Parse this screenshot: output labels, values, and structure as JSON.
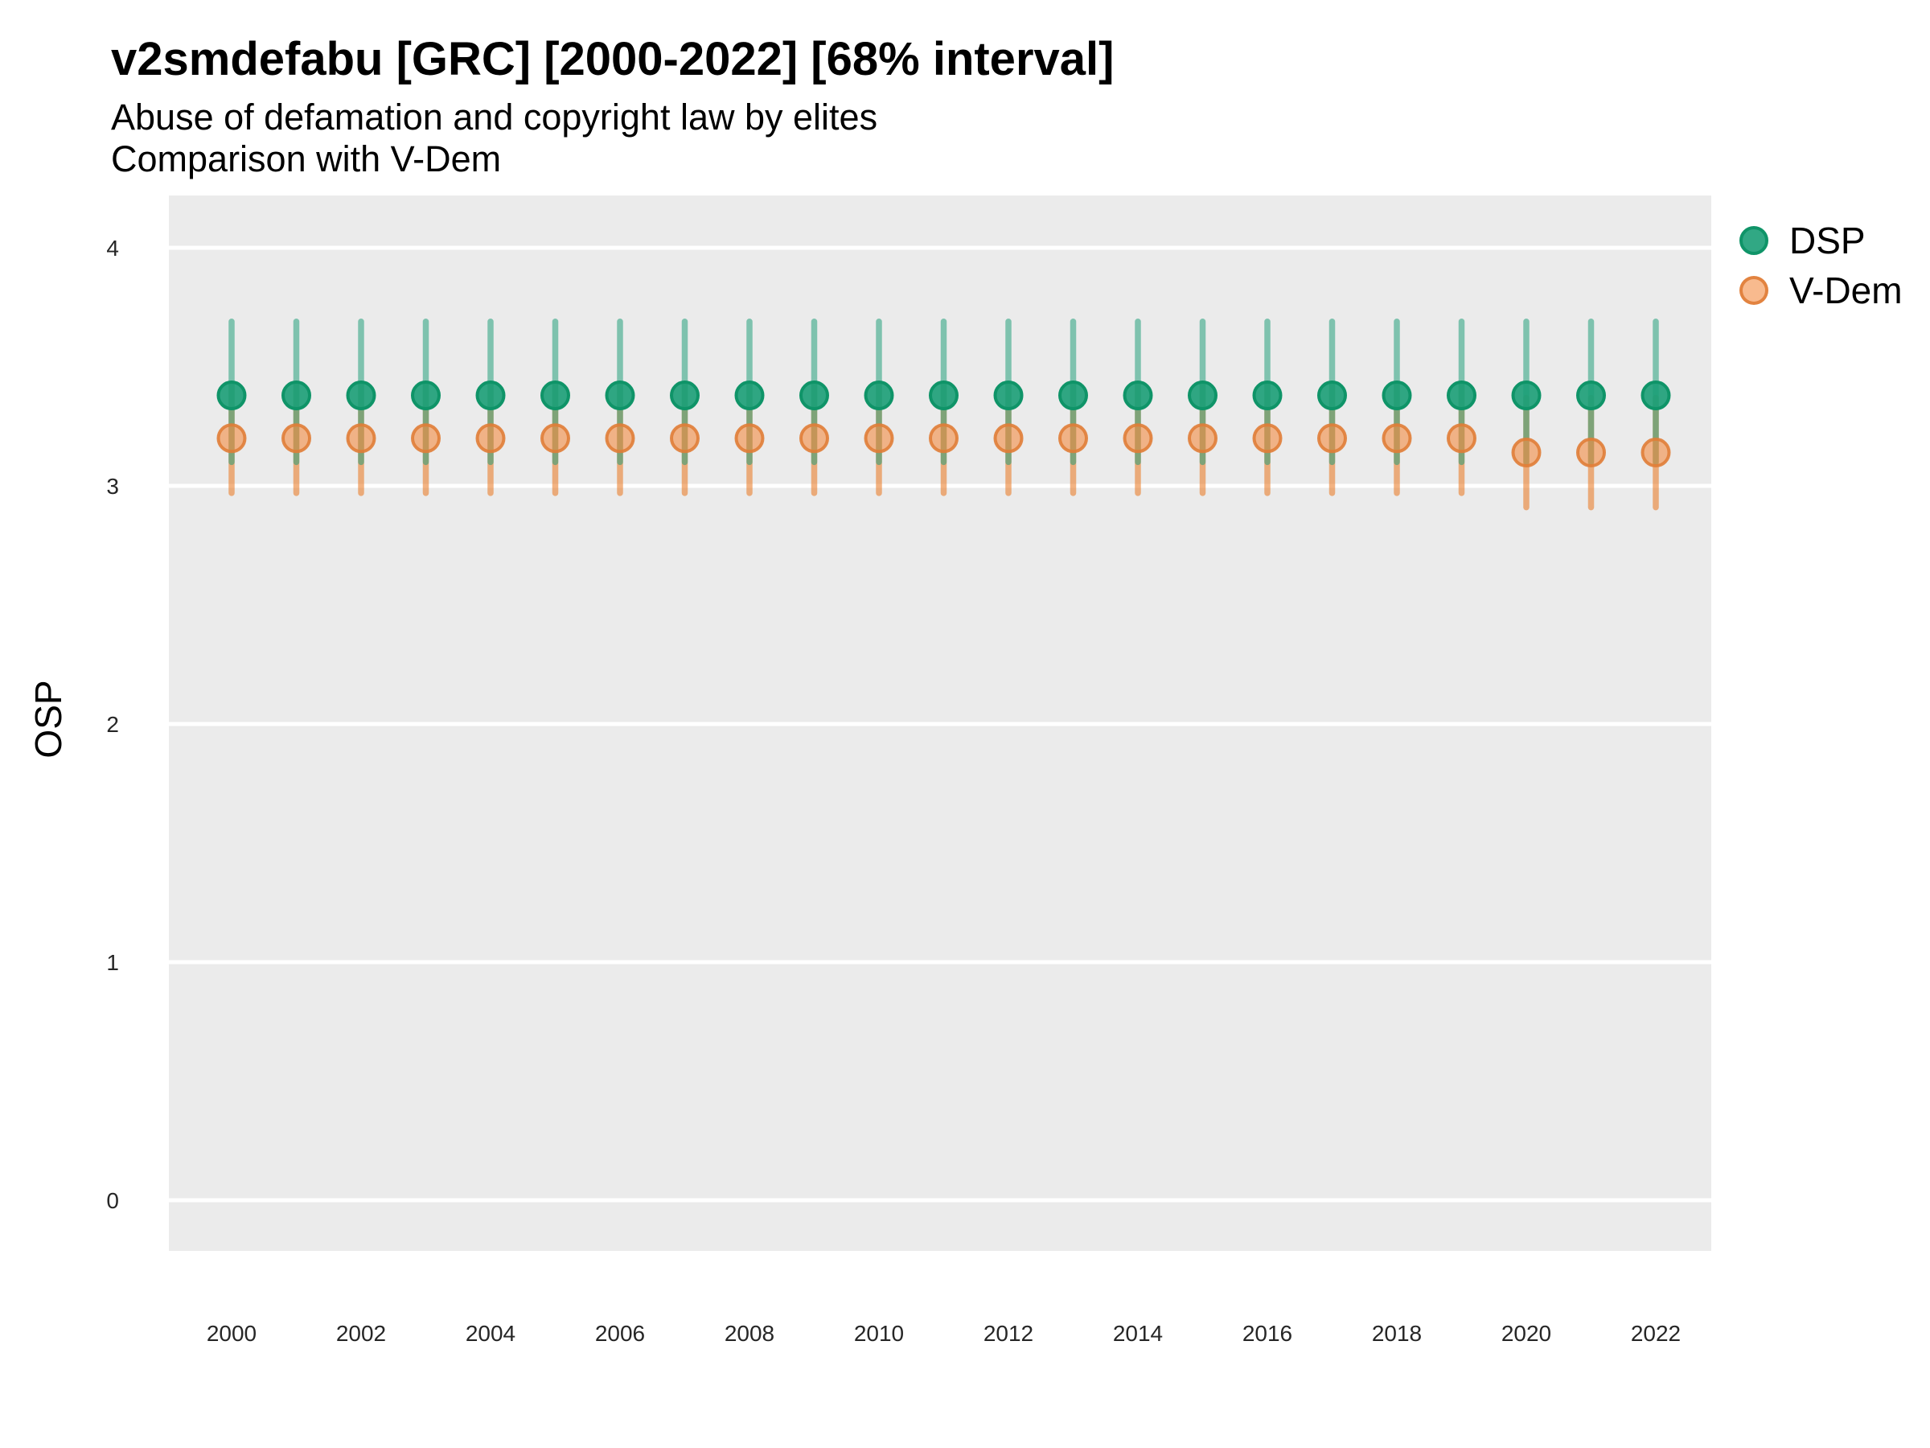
{
  "header": {
    "title": "v2smdefabu [GRC] [2000-2022] [68% interval]",
    "subtitle_line1": "Abuse of defamation and copyright law by elites",
    "subtitle_line2": "Comparison with V-Dem"
  },
  "legend": {
    "position": "right-top",
    "items": [
      {
        "label": "DSP"
      },
      {
        "label": "V-Dem"
      }
    ]
  },
  "colors": {
    "panel_background": "#EBEBEB",
    "gridline": "#FFFFFF",
    "dsp_green": "#1B9E77",
    "vdem_orange": "#E9751C"
  },
  "chart_data": {
    "type": "pointrange",
    "title": "v2smdefabu [GRC] [2000-2022] [68% interval]",
    "subtitle": [
      "Abuse of defamation and copyright law by elites",
      "Comparison with V-Dem"
    ],
    "interval": "68%",
    "xlabel": "",
    "ylabel": "OSP",
    "ylim": [
      0,
      4
    ],
    "grid": "horizontal-major-only",
    "legend_position": "right-top",
    "y_ticks": [
      0,
      1,
      2,
      3,
      4
    ],
    "x_ticks": [
      2000,
      2002,
      2004,
      2006,
      2008,
      2010,
      2012,
      2014,
      2016,
      2018,
      2020,
      2022
    ],
    "x": [
      2000,
      2001,
      2002,
      2003,
      2004,
      2005,
      2006,
      2007,
      2008,
      2009,
      2010,
      2011,
      2012,
      2013,
      2014,
      2015,
      2016,
      2017,
      2018,
      2019,
      2020,
      2021,
      2022
    ],
    "series": [
      {
        "name": "DSP",
        "point": [
          3.38,
          3.38,
          3.38,
          3.38,
          3.38,
          3.38,
          3.38,
          3.38,
          3.38,
          3.38,
          3.38,
          3.38,
          3.38,
          3.38,
          3.38,
          3.38,
          3.38,
          3.38,
          3.38,
          3.38,
          3.38,
          3.38,
          3.38
        ],
        "lower": [
          3.1,
          3.1,
          3.1,
          3.1,
          3.1,
          3.1,
          3.1,
          3.1,
          3.1,
          3.1,
          3.1,
          3.1,
          3.1,
          3.1,
          3.1,
          3.1,
          3.1,
          3.1,
          3.1,
          3.1,
          3.1,
          3.1,
          3.1
        ],
        "upper": [
          3.69,
          3.69,
          3.69,
          3.69,
          3.69,
          3.69,
          3.69,
          3.69,
          3.69,
          3.69,
          3.69,
          3.69,
          3.69,
          3.69,
          3.69,
          3.69,
          3.69,
          3.69,
          3.69,
          3.69,
          3.69,
          3.69,
          3.69
        ],
        "bar_color": "rgba(27,158,119,0.52)",
        "point_fill": "rgba(27,158,119,0.9)",
        "point_stroke": "#0F9468"
      },
      {
        "name": "V-Dem",
        "point": [
          3.2,
          3.2,
          3.2,
          3.2,
          3.2,
          3.2,
          3.2,
          3.2,
          3.2,
          3.2,
          3.2,
          3.2,
          3.2,
          3.2,
          3.2,
          3.2,
          3.2,
          3.2,
          3.2,
          3.2,
          3.14,
          3.14,
          3.14
        ],
        "lower": [
          2.97,
          2.97,
          2.97,
          2.97,
          2.97,
          2.97,
          2.97,
          2.97,
          2.97,
          2.97,
          2.97,
          2.97,
          2.97,
          2.97,
          2.97,
          2.97,
          2.97,
          2.97,
          2.97,
          2.97,
          2.91,
          2.91,
          2.91
        ],
        "upper": [
          3.43,
          3.43,
          3.43,
          3.43,
          3.43,
          3.43,
          3.43,
          3.43,
          3.43,
          3.43,
          3.43,
          3.43,
          3.43,
          3.43,
          3.43,
          3.43,
          3.43,
          3.43,
          3.43,
          3.43,
          3.37,
          3.37,
          3.37
        ],
        "bar_color": "rgba(233,117,28,0.55)",
        "point_fill": "rgba(243,140,66,0.6)",
        "point_stroke": "rgba(224,125,55,0.9)"
      }
    ]
  }
}
